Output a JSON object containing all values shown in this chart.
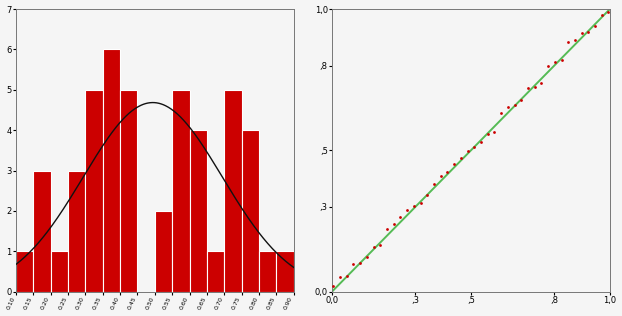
{
  "hist_values": [
    1,
    3,
    1,
    3,
    5,
    6,
    5,
    0,
    2,
    5,
    4,
    1,
    5,
    4,
    1,
    1
  ],
  "hist_bar_color": "#cc0000",
  "hist_bar_edgecolor": "#ffffff",
  "hist_bar_linewidth": 0.8,
  "hist_ylim": [
    0,
    7
  ],
  "hist_yticks": [
    0,
    1,
    2,
    3,
    4,
    5,
    6,
    7
  ],
  "curve_color": "#111111",
  "curve_linewidth": 1.0,
  "qq_line_color": "#55bb55",
  "qq_dot_color": "#cc0000",
  "qq_dot_size": 4,
  "qq_xlim": [
    0.0,
    1.0
  ],
  "qq_ylim": [
    0.0,
    1.0
  ],
  "qq_xticks": [
    0.0,
    0.3,
    0.5,
    0.8,
    1.0
  ],
  "qq_yticks": [
    0.0,
    0.3,
    0.5,
    0.8,
    1.0
  ],
  "qq_xticklabels": [
    "0,0",
    ",3",
    ",5",
    ",8",
    "1,0"
  ],
  "qq_yticklabels": [
    "0,0",
    ",3",
    ",5",
    ",8",
    "1,0"
  ],
  "n_qq_points": 42,
  "background_color": "#f5f5f5",
  "spine_color": "#777777",
  "tick_labelsize": 6,
  "hist_xtick_rotation": 65,
  "hist_xtick_fontsize": 4.5,
  "figsize": [
    6.22,
    3.16
  ],
  "dpi": 100
}
